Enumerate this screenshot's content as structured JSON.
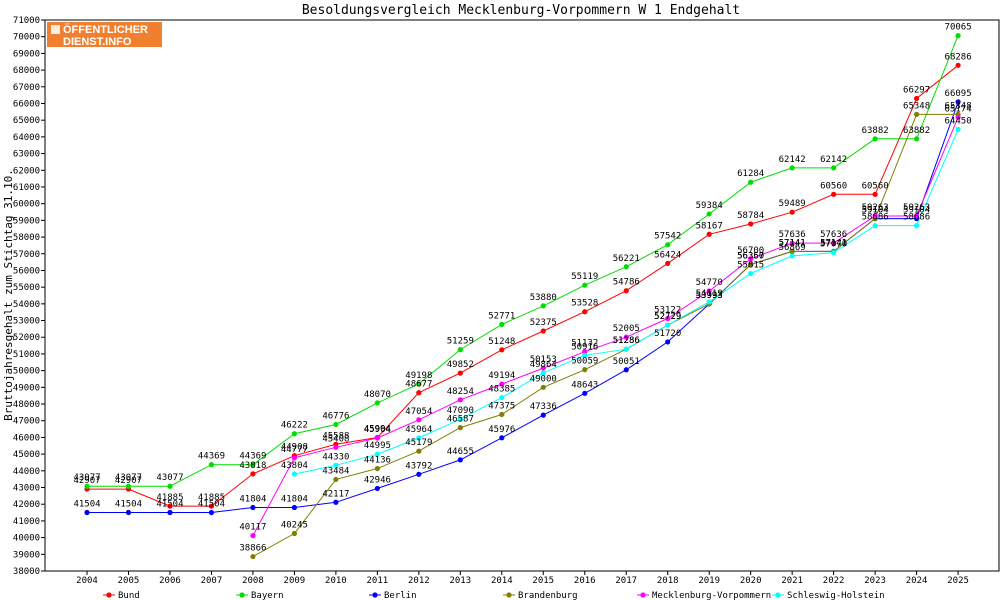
{
  "chart_data": {
    "type": "line",
    "title": "Besoldungsvergleich Mecklenburg-Vorpommern W 1 Endgehalt",
    "ylabel": "Bruttojahresgehalt zum Stichtag 31.10.",
    "xlabel": "",
    "ylim": [
      38000,
      71000
    ],
    "ytick_step": 1000,
    "grid": false,
    "legend_position": "bottom",
    "categories": [
      "2004",
      "2005",
      "2006",
      "2007",
      "2008",
      "2009",
      "2010",
      "2011",
      "2012",
      "2013",
      "2014",
      "2015",
      "2016",
      "2017",
      "2018",
      "2019",
      "2020",
      "2021",
      "2022",
      "2023",
      "2024",
      "2025"
    ],
    "series": [
      {
        "name": "Bund",
        "color": "#ff0000",
        "values": [
          42907,
          42907,
          41885,
          41885,
          43818,
          44908,
          45588,
          45994,
          48677,
          49852,
          51248,
          52375,
          53528,
          54786,
          56424,
          58167,
          58784,
          59489,
          60560,
          60560,
          66297,
          68286
        ]
      },
      {
        "name": "Bayern",
        "color": "#00dd00",
        "values": [
          43077,
          43077,
          43077,
          44369,
          44369,
          46222,
          46776,
          48070,
          49198,
          51259,
          52771,
          53880,
          55119,
          56221,
          57542,
          59384,
          61284,
          62142,
          62142,
          63882,
          63882,
          70065
        ]
      },
      {
        "name": "Berlin",
        "color": "#0000ff",
        "values": [
          41504,
          41504,
          41504,
          41504,
          41804,
          41804,
          42117,
          42946,
          43792,
          44655,
          45976,
          47336,
          48643,
          50051,
          51720,
          53993,
          56357,
          57141,
          57141,
          59104,
          59104,
          66095
        ]
      },
      {
        "name": "Brandenburg",
        "color": "#808000",
        "values": [
          null,
          null,
          null,
          null,
          38866,
          40245,
          43484,
          44136,
          45179,
          46587,
          47375,
          49000,
          50059,
          51286,
          52729,
          53993,
          56360,
          57141,
          57141,
          59104,
          65348,
          65348
        ]
      },
      {
        "name": "Mecklenburg-Vorpommern",
        "color": "#ff00ff",
        "values": [
          null,
          null,
          null,
          null,
          40117,
          44777,
          45408,
          45964,
          47054,
          48254,
          49194,
          50153,
          51132,
          52005,
          53122,
          54770,
          56700,
          57636,
          57636,
          59263,
          59263,
          65174
        ]
      },
      {
        "name": "Schleswig-Holstein",
        "color": "#00ffff",
        "values": [
          null,
          null,
          null,
          null,
          null,
          43804,
          44330,
          44995,
          45964,
          47090,
          48385,
          49864,
          50916,
          51286,
          52729,
          54119,
          55815,
          56869,
          57070,
          58686,
          58686,
          64450
        ]
      }
    ]
  },
  "logo": {
    "line1": "ÖFFENTLICHER",
    "line2": "DIENST.INFO"
  }
}
